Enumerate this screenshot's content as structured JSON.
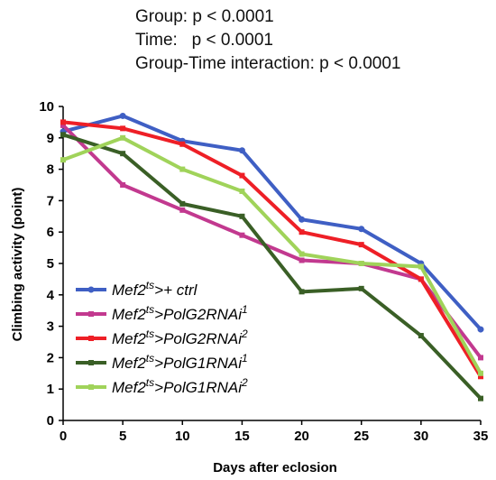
{
  "stats_lines": [
    "Group: p < 0.0001",
    "Time:   p < 0.0001",
    "Group-Time interaction: p < 0.0001"
  ],
  "chart_data": {
    "type": "line",
    "xlabel": "Days after eclosion",
    "ylabel": "Climbing activity (point)",
    "x": [
      0,
      5,
      10,
      15,
      20,
      25,
      30,
      35
    ],
    "xlim": [
      0,
      35
    ],
    "ylim": [
      0,
      10
    ],
    "xticks": [
      "0",
      "5",
      "10",
      "15",
      "20",
      "25",
      "30",
      "35"
    ],
    "yticks": [
      "0",
      "1",
      "2",
      "3",
      "4",
      "5",
      "6",
      "7",
      "8",
      "9",
      "10"
    ],
    "legend_position": "bottom-left",
    "grid": false,
    "series": [
      {
        "base": "Mef2",
        "sup": "ts",
        "rest": ">+ ctrl",
        "sup2": "",
        "color": "#3f5fc4",
        "values": [
          9.2,
          9.7,
          8.9,
          8.6,
          6.4,
          6.1,
          5.0,
          2.9
        ]
      },
      {
        "base": "Mef2",
        "sup": "ts",
        "rest": ">PolG2RNAi",
        "sup2": "1",
        "color": "#c2398f",
        "values": [
          9.4,
          7.5,
          6.7,
          5.9,
          5.1,
          5.0,
          4.5,
          2.0
        ]
      },
      {
        "base": "Mef2",
        "sup": "ts",
        "rest": ">PolG2RNAi",
        "sup2": "2",
        "color": "#ee1f26",
        "values": [
          9.5,
          9.3,
          8.8,
          7.8,
          6.0,
          5.6,
          4.5,
          1.4
        ]
      },
      {
        "base": "Mef2",
        "sup": "ts",
        "rest": ">PolG1RNAi",
        "sup2": "1",
        "color": "#3a5f26",
        "values": [
          9.1,
          8.5,
          6.9,
          6.5,
          4.1,
          4.2,
          2.7,
          0.7
        ]
      },
      {
        "base": "Mef2",
        "sup": "ts",
        "rest": ">PolG1RNAi",
        "sup2": "2",
        "color": "#a0d35a",
        "values": [
          8.3,
          9.0,
          8.0,
          7.3,
          5.3,
          5.0,
          4.9,
          1.5
        ]
      }
    ]
  }
}
